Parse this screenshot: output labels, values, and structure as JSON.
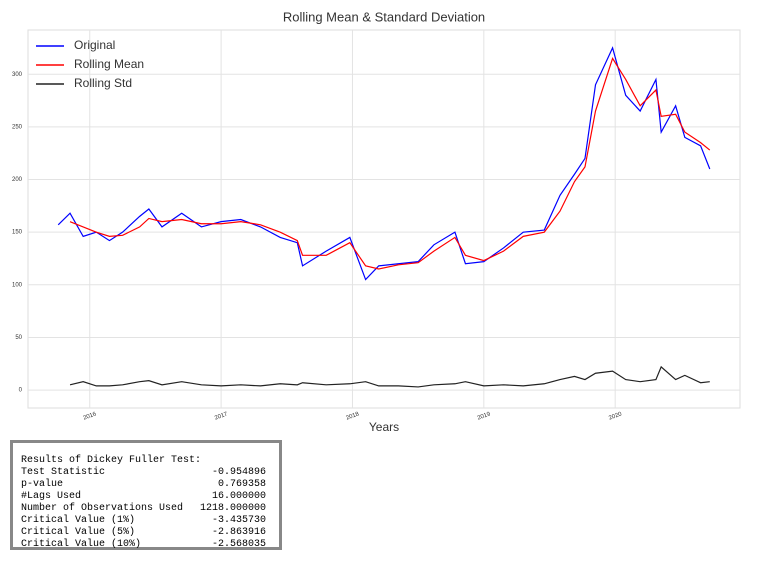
{
  "chart_data": {
    "type": "line",
    "title": "Rolling Mean & Standard Deviation",
    "x_label": "Years",
    "x": [
      2015.76,
      2015.85,
      2015.95,
      2016.05,
      2016.15,
      2016.25,
      2016.38,
      2016.45,
      2016.55,
      2016.7,
      2016.85,
      2017.0,
      2017.15,
      2017.3,
      2017.45,
      2017.58,
      2017.62,
      2017.8,
      2017.98,
      2018.1,
      2018.2,
      2018.35,
      2018.5,
      2018.62,
      2018.78,
      2018.86,
      2019.0,
      2019.15,
      2019.3,
      2019.46,
      2019.58,
      2019.69,
      2019.77,
      2019.85,
      2019.98,
      2020.08,
      2020.19,
      2020.31,
      2020.35,
      2020.46,
      2020.53,
      2020.65,
      2020.72
    ],
    "series": [
      {
        "name": "Original",
        "color": "#0000ff",
        "values": [
          157,
          168,
          146,
          150,
          142,
          150,
          165,
          172,
          155,
          168,
          155,
          160,
          162,
          155,
          145,
          140,
          118,
          132,
          145,
          105,
          118,
          120,
          122,
          138,
          150,
          120,
          122,
          135,
          150,
          152,
          185,
          205,
          220,
          290,
          325,
          280,
          265,
          295,
          245,
          270,
          240,
          232,
          210
        ]
      },
      {
        "name": "Rolling Mean",
        "color": "#ff0000",
        "values": [
          null,
          160,
          155,
          150,
          146,
          147,
          155,
          163,
          160,
          162,
          158,
          158,
          160,
          157,
          150,
          142,
          128,
          128,
          140,
          118,
          115,
          119,
          121,
          132,
          145,
          128,
          123,
          132,
          146,
          150,
          170,
          198,
          212,
          265,
          315,
          295,
          270,
          285,
          260,
          262,
          245,
          235,
          228
        ]
      },
      {
        "name": "Rolling Std",
        "color": "#222222",
        "values": [
          null,
          5,
          8,
          4,
          4,
          5,
          8,
          9,
          5,
          8,
          5,
          4,
          5,
          4,
          6,
          5,
          7,
          5,
          6,
          8,
          4,
          4,
          3,
          5,
          6,
          8,
          4,
          5,
          4,
          6,
          10,
          13,
          10,
          16,
          18,
          10,
          8,
          10,
          22,
          10,
          14,
          7,
          8
        ]
      }
    ],
    "xlim": [
      2015.53,
      2020.95
    ],
    "xticks": [
      2016,
      2017,
      2018,
      2019,
      2020
    ],
    "ylim": [
      -17,
      342
    ],
    "yticks": [
      0,
      50,
      100,
      150,
      200,
      250,
      300
    ],
    "grid": true,
    "legend": "upper left"
  },
  "results": {
    "title": "Results of Dickey Fuller Test:",
    "rows": [
      [
        "Test Statistic",
        "-0.954896"
      ],
      [
        "p-value",
        "0.769358"
      ],
      [
        "#Lags Used",
        "16.000000"
      ],
      [
        "Number of Observations Used",
        "1218.000000"
      ],
      [
        "Critical Value (1%)",
        "-3.435730"
      ],
      [
        "Critical Value (5%)",
        "-2.863916"
      ],
      [
        "Critical Value (10%)",
        "-2.568035"
      ]
    ]
  }
}
